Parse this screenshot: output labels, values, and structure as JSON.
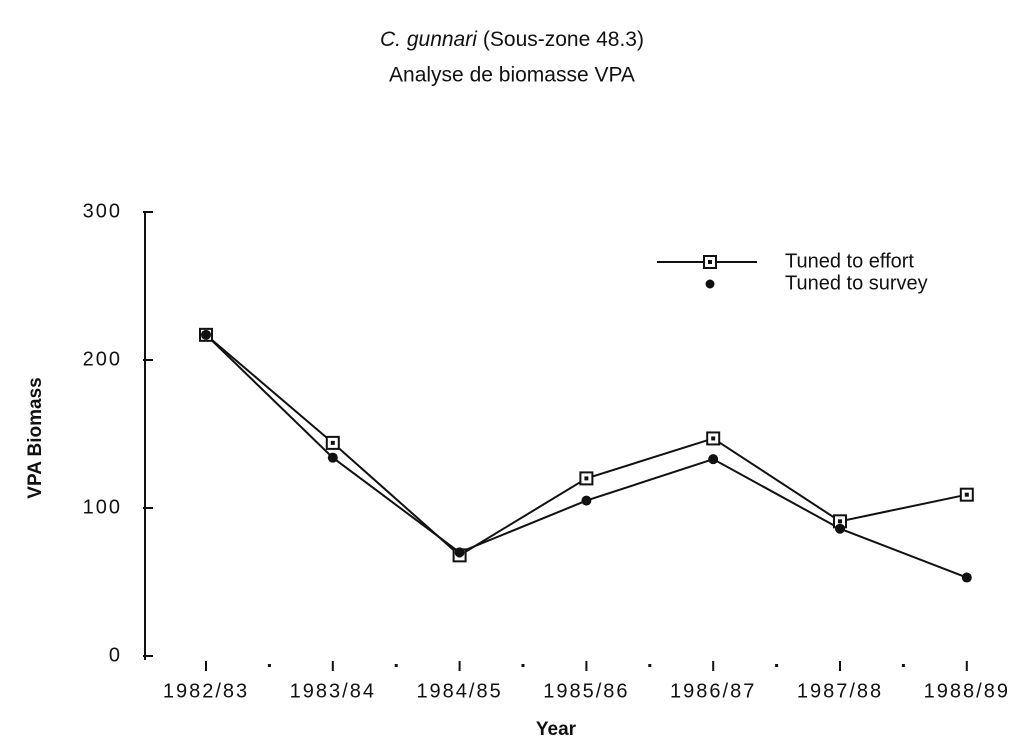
{
  "chart_data": {
    "type": "line",
    "title": {
      "species": "C. gunnari",
      "area": "(Sous-zone 48.3)"
    },
    "subtitle": "Analyse de biomasse VPA",
    "x_label": "Year",
    "y_label": "VPA  Biomass",
    "categories": [
      "1982/83",
      "1983/84",
      "1984/85",
      "1985/86",
      "1986/87",
      "1987/88",
      "1988/89"
    ],
    "series": [
      {
        "name": "Tuned to effort",
        "color": "#111111",
        "marker": "square",
        "line": true,
        "values": [
          217,
          144,
          68,
          120,
          147,
          91,
          109
        ]
      },
      {
        "name": "Tuned to survey",
        "color": "#111111",
        "marker": "circle",
        "line": true,
        "values": [
          217,
          134,
          70,
          105,
          133,
          86,
          53
        ]
      }
    ],
    "ylim": [
      0,
      300
    ],
    "yticks": [
      0,
      100,
      200,
      300
    ],
    "legend": "upper right"
  }
}
